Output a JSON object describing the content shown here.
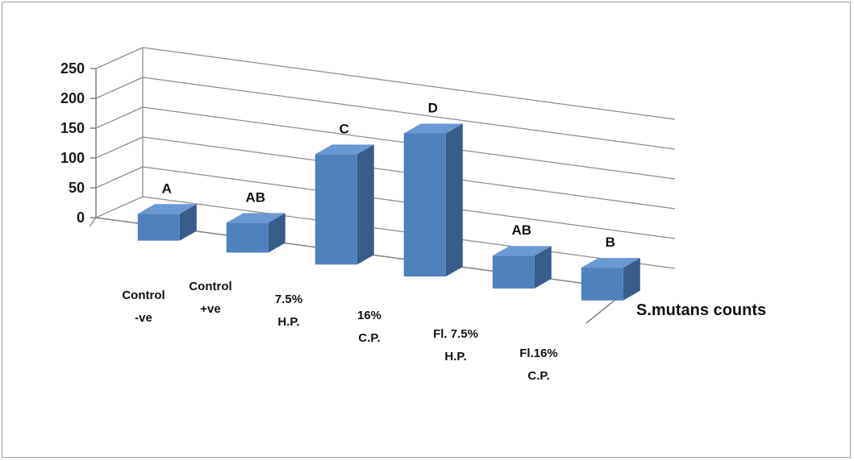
{
  "chart_data": {
    "type": "bar",
    "three_d": true,
    "categories": [
      [
        "Control",
        "-ve"
      ],
      [
        "Control",
        "+ve"
      ],
      [
        "7.5%",
        "H.P."
      ],
      [
        "16%",
        "C.P."
      ],
      [
        "Fl. 7.5%",
        "H.P."
      ],
      [
        "Fl.16%",
        "C.P."
      ]
    ],
    "series": [
      {
        "name": "S.mutans counts",
        "values": [
          45,
          50,
          185,
          240,
          55,
          55
        ]
      }
    ],
    "annotations": [
      "A",
      "AB",
      "C",
      "D",
      "AB",
      "B"
    ],
    "yticks": [
      "250",
      "200",
      "150",
      "100",
      "50",
      "0"
    ],
    "ylim": [
      0,
      250
    ],
    "grid": true,
    "legend_position": "right",
    "colors": {
      "bar_front": "#4f81bd",
      "bar_side": "#385d8a",
      "bar_top": "#6a98d2",
      "grid": "#8c8c8c",
      "axis": "#7f7f7f"
    }
  }
}
